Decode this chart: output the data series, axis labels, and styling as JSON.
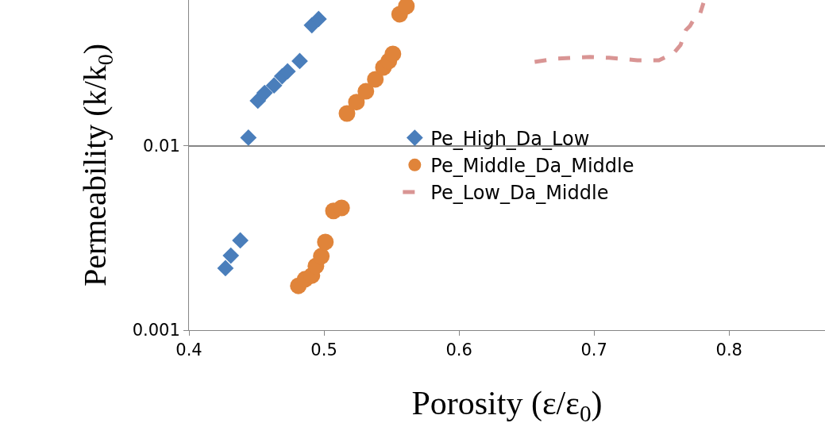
{
  "chart_data": {
    "type": "scatter",
    "xlabel": "Porosity (ε/ε$_{0}$)",
    "ylabel": "Permeability (k/k$_{0}$)",
    "log": "y",
    "xlim": [
      0.4,
      0.871
    ],
    "xticks": [
      0.4,
      0.5,
      0.6,
      0.7,
      0.8
    ],
    "ylim": [
      0.001,
      0.062
    ],
    "yticks": [
      0.001,
      0.01
    ],
    "grid": "y",
    "legend": "right",
    "series": [
      {
        "name": "Pe_High_Da_Low",
        "color": "#4a7ebb",
        "marker": "diamond",
        "x": [
          0.427,
          0.431,
          0.438,
          0.444,
          0.451,
          0.456,
          0.463,
          0.469,
          0.473,
          0.482,
          0.491,
          0.496
        ],
        "values": [
          0.00217,
          0.00254,
          0.00307,
          0.0111,
          0.0176,
          0.0194,
          0.0213,
          0.0239,
          0.0254,
          0.0289,
          0.0452,
          0.0489
        ]
      },
      {
        "name": "Pe_Middle_Da_Middle",
        "color": "#e0843a",
        "marker": "circle",
        "x": [
          0.481,
          0.486,
          0.491,
          0.494,
          0.498,
          0.501,
          0.507,
          0.513,
          0.517,
          0.524,
          0.531,
          0.538,
          0.544,
          0.548,
          0.551,
          0.556,
          0.561
        ],
        "values": [
          0.00174,
          0.00189,
          0.00198,
          0.00223,
          0.00252,
          0.00301,
          0.00444,
          0.00461,
          0.015,
          0.0173,
          0.0198,
          0.023,
          0.0267,
          0.0289,
          0.0316,
          0.0519,
          0.0574
        ]
      },
      {
        "name": "Pe_Low_Da_Middle",
        "color": "#d99594",
        "type": "line",
        "line_style": "dashed",
        "marker": "none",
        "x": [
          0.656,
          0.672,
          0.697,
          0.711,
          0.732,
          0.748,
          0.759,
          0.764,
          0.768,
          0.771,
          0.773,
          0.778,
          0.781
        ],
        "values": [
          0.0286,
          0.0298,
          0.0304,
          0.0301,
          0.0292,
          0.0292,
          0.0319,
          0.0353,
          0.0426,
          0.0448,
          0.0475,
          0.0509,
          0.0597
        ]
      }
    ]
  }
}
